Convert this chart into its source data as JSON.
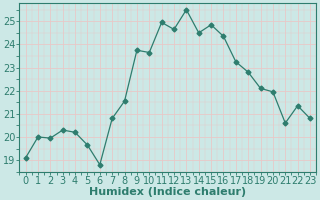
{
  "x": [
    0,
    1,
    2,
    3,
    4,
    5,
    6,
    7,
    8,
    9,
    10,
    11,
    12,
    13,
    14,
    15,
    16,
    17,
    18,
    19,
    20,
    21,
    22,
    23
  ],
  "y": [
    19.1,
    20.0,
    19.95,
    20.3,
    20.2,
    19.65,
    18.8,
    20.8,
    21.55,
    23.75,
    23.65,
    24.95,
    24.65,
    25.5,
    24.5,
    24.85,
    24.35,
    23.25,
    22.8,
    22.1,
    21.95,
    20.6,
    21.35,
    20.8
  ],
  "line_color": "#2e7d6e",
  "marker": "D",
  "marker_size": 2.5,
  "bg_color": "#cce8e6",
  "major_grid_color": "#e8c8c8",
  "minor_grid_color": "#e0e0e0",
  "xlabel": "Humidex (Indice chaleur)",
  "xlabel_fontsize": 8,
  "ylabel_ticks": [
    19,
    20,
    21,
    22,
    23,
    24,
    25
  ],
  "xlim": [
    -0.5,
    23.5
  ],
  "ylim": [
    18.5,
    25.8
  ],
  "tick_fontsize": 7,
  "axis_color": "#2e7d6e",
  "spine_color": "#2e7d6e"
}
